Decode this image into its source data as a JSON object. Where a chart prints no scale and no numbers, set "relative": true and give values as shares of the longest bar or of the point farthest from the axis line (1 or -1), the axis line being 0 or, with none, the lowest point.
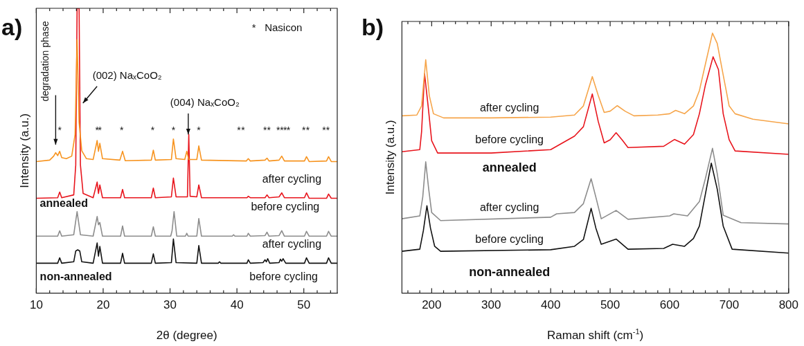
{
  "chart_data": [
    {
      "type": "line",
      "title": "a)",
      "xlabel": "2θ (degree)",
      "ylabel": "Intensity (a.u.)",
      "relative": true,
      "marker": "none",
      "xlim": [
        10,
        55
      ],
      "xticks": [
        10,
        {
          "value": 12,
          "label": null
        },
        {
          "value": 14,
          "label": null
        },
        {
          "value": 16,
          "label": null
        },
        {
          "value": 18,
          "label": null
        },
        20,
        {
          "value": 22,
          "label": null
        },
        {
          "value": 24,
          "label": null
        },
        {
          "value": 26,
          "label": null
        },
        {
          "value": 28,
          "label": null
        },
        30,
        {
          "value": 32,
          "label": null
        },
        {
          "value": 34,
          "label": null
        },
        {
          "value": 36,
          "label": null
        },
        {
          "value": 38,
          "label": null
        },
        40,
        {
          "value": 42,
          "label": null
        },
        {
          "value": 44,
          "label": null
        },
        {
          "value": 46,
          "label": null
        },
        {
          "value": 48,
          "label": null
        },
        50,
        {
          "value": 52,
          "label": null
        },
        {
          "value": 54,
          "label": null
        }
      ],
      "series": [
        {
          "color": "#f7931e",
          "x": [
            10,
            12.0,
            12.6,
            12.9,
            13.2,
            13.5,
            13.8,
            14.5,
            15.3,
            15.8,
            16.1,
            16.4,
            16.8,
            17.5,
            18.5,
            19.1,
            19.3,
            19.5,
            19.9,
            22.5,
            22.9,
            23.3,
            27.2,
            27.5,
            27.8,
            30.2,
            30.5,
            30.9,
            32.2,
            32.5,
            32.8,
            34.0,
            34.3,
            34.7,
            41.4,
            41.7,
            42.0,
            44.2,
            44.5,
            44.8,
            46.3,
            46.7,
            47.1,
            50.1,
            50.4,
            50.8,
            53.4,
            53.7,
            54.1,
            55
          ],
          "values": [
            0.462,
            0.467,
            0.481,
            0.493,
            0.483,
            0.498,
            0.476,
            0.472,
            0.481,
            0.557,
            0.89,
            0.6,
            0.5,
            0.472,
            0.469,
            0.536,
            0.498,
            0.526,
            0.472,
            0.467,
            0.498,
            0.465,
            0.467,
            0.502,
            0.467,
            0.469,
            0.541,
            0.472,
            0.469,
            0.498,
            0.469,
            0.469,
            0.517,
            0.467,
            0.464,
            0.472,
            0.464,
            0.467,
            0.474,
            0.464,
            0.467,
            0.481,
            0.464,
            0.464,
            0.479,
            0.462,
            0.464,
            0.479,
            0.462,
            0.462
          ]
        },
        {
          "color": "#e8141c",
          "x": [
            10,
            13.2,
            13.5,
            13.8,
            15.6,
            15.9,
            16.1,
            16.4,
            16.6,
            17.0,
            18.5,
            19.1,
            19.3,
            19.5,
            19.9,
            22.6,
            22.9,
            23.2,
            27.2,
            27.5,
            27.8,
            30.2,
            30.5,
            30.9,
            32.6,
            32.8,
            33.0,
            34.0,
            34.3,
            34.7,
            41.5,
            41.7,
            42.0,
            44.2,
            44.5,
            44.8,
            46.3,
            46.7,
            47.1,
            50.1,
            50.4,
            50.8,
            53.4,
            53.7,
            54.1,
            55
          ],
          "values": [
            0.333,
            0.335,
            0.355,
            0.335,
            0.345,
            0.45,
            1.0,
            1.0,
            0.45,
            0.35,
            0.335,
            0.39,
            0.35,
            0.38,
            0.335,
            0.335,
            0.364,
            0.335,
            0.335,
            0.369,
            0.335,
            0.338,
            0.404,
            0.338,
            0.338,
            0.557,
            0.34,
            0.338,
            0.38,
            0.335,
            0.335,
            0.34,
            0.335,
            0.335,
            0.345,
            0.335,
            0.338,
            0.352,
            0.335,
            0.335,
            0.352,
            0.333,
            0.333,
            0.348,
            0.333,
            0.333
          ]
        },
        {
          "color": "#8c8c8c",
          "x": [
            10,
            13.2,
            13.5,
            13.8,
            15.6,
            16.1,
            16.6,
            18.5,
            19.1,
            19.3,
            19.5,
            19.9,
            22.6,
            22.9,
            23.2,
            27.2,
            27.5,
            27.8,
            30.1,
            30.3,
            30.6,
            31.0,
            32.3,
            32.5,
            32.7,
            34.0,
            34.3,
            34.7,
            39.3,
            39.5,
            39.7,
            41.5,
            41.7,
            42.0,
            44.2,
            44.5,
            44.8,
            46.3,
            46.7,
            47.1,
            50.1,
            50.4,
            50.8,
            53.4,
            53.7,
            54.1,
            55
          ],
          "values": [
            0.2,
            0.2,
            0.219,
            0.2,
            0.205,
            0.286,
            0.205,
            0.2,
            0.269,
            0.24,
            0.248,
            0.2,
            0.2,
            0.236,
            0.2,
            0.2,
            0.233,
            0.2,
            0.2,
            0.219,
            0.286,
            0.2,
            0.2,
            0.21,
            0.2,
            0.2,
            0.262,
            0.2,
            0.2,
            0.205,
            0.2,
            0.2,
            0.21,
            0.2,
            0.202,
            0.214,
            0.2,
            0.202,
            0.219,
            0.2,
            0.2,
            0.217,
            0.2,
            0.2,
            0.217,
            0.2,
            0.2
          ]
        },
        {
          "color": "#111111",
          "x": [
            10,
            13.2,
            13.5,
            13.8,
            15.6,
            15.9,
            16.2,
            16.5,
            16.8,
            18.5,
            19.1,
            19.3,
            19.5,
            19.9,
            22.6,
            22.9,
            23.2,
            27.2,
            27.5,
            27.8,
            30.2,
            30.5,
            30.9,
            34.0,
            34.3,
            34.7,
            37.2,
            37.4,
            37.6,
            41.5,
            41.7,
            42.0,
            43.9,
            44.2,
            44.4,
            44.6,
            44.9,
            46.3,
            46.5,
            46.7,
            46.9,
            47.3,
            50.1,
            50.4,
            50.8,
            53.4,
            53.7,
            54.1,
            55
          ],
          "values": [
            0.105,
            0.105,
            0.124,
            0.105,
            0.11,
            0.148,
            0.152,
            0.148,
            0.11,
            0.105,
            0.176,
            0.13,
            0.164,
            0.105,
            0.105,
            0.14,
            0.105,
            0.105,
            0.138,
            0.105,
            0.107,
            0.19,
            0.107,
            0.105,
            0.167,
            0.105,
            0.105,
            0.11,
            0.105,
            0.105,
            0.117,
            0.105,
            0.107,
            0.117,
            0.11,
            0.121,
            0.105,
            0.107,
            0.119,
            0.112,
            0.121,
            0.105,
            0.105,
            0.124,
            0.105,
            0.105,
            0.124,
            0.105,
            0.105
          ]
        }
      ],
      "annotations": [
        "degradation phase",
        "(002) NaₓCoO₂",
        "(004) NaₓCoO₂",
        "*",
        "*",
        "*",
        "*",
        "*",
        "*",
        "*",
        "*",
        "*",
        "*",
        "*",
        "*",
        "*",
        "*",
        "*",
        "*",
        "*",
        "*",
        "*",
        "after cycling",
        "before cycling",
        "after cycling",
        "before cycling",
        "*   Nasicon",
        "annealed",
        "non-annealed"
      ]
    },
    {
      "type": "line",
      "title": "b)",
      "xlabel": "Raman shift (cm$^{-1}$)",
      "ylabel": "Intensity (a.u.)",
      "relative": true,
      "marker": "none",
      "xlim": [
        150,
        800
      ],
      "xticks": [
        {
          "value": 160,
          "label": null
        },
        {
          "value": 180,
          "label": null
        },
        200,
        {
          "value": 220,
          "label": null
        },
        {
          "value": 240,
          "label": null
        },
        {
          "value": 260,
          "label": null
        },
        {
          "value": 280,
          "label": null
        },
        300,
        {
          "value": 320,
          "label": null
        },
        {
          "value": 340,
          "label": null
        },
        {
          "value": 360,
          "label": null
        },
        {
          "value": 380,
          "label": null
        },
        400,
        {
          "value": 420,
          "label": null
        },
        {
          "value": 440,
          "label": null
        },
        {
          "value": 460,
          "label": null
        },
        {
          "value": 480,
          "label": null
        },
        500,
        {
          "value": 520,
          "label": null
        },
        {
          "value": 540,
          "label": null
        },
        {
          "value": 560,
          "label": null
        },
        {
          "value": 580,
          "label": null
        },
        600,
        {
          "value": 620,
          "label": null
        },
        {
          "value": 640,
          "label": null
        },
        {
          "value": 660,
          "label": null
        },
        {
          "value": 680,
          "label": null
        },
        700,
        {
          "value": 720,
          "label": null
        },
        {
          "value": 740,
          "label": null
        },
        {
          "value": 760,
          "label": null
        },
        {
          "value": 780,
          "label": null
        },
        800
      ],
      "series": [
        {
          "color": "#f6a54a",
          "x": [
            150,
            175,
            183,
            190,
            196,
            203,
            220,
            300,
            400,
            440,
            455,
            470,
            480,
            490,
            500,
            512,
            525,
            540,
            580,
            600,
            610,
            625,
            640,
            650,
            660,
            672,
            680,
            690,
            700,
            710,
            740,
            800
          ],
          "values": [
            0.682,
            0.685,
            0.72,
            0.898,
            0.76,
            0.69,
            0.674,
            0.674,
            0.677,
            0.685,
            0.72,
            0.833,
            0.76,
            0.695,
            0.7,
            0.721,
            0.7,
            0.682,
            0.685,
            0.69,
            0.703,
            0.69,
            0.72,
            0.779,
            0.88,
            1.0,
            0.96,
            0.839,
            0.72,
            0.69,
            0.669,
            0.651
          ]
        },
        {
          "color": "#e8141c",
          "x": [
            150,
            180,
            183,
            188,
            194,
            200,
            210,
            300,
            400,
            440,
            455,
            470,
            480,
            490,
            500,
            510,
            520,
            530,
            590,
            608,
            625,
            640,
            650,
            660,
            673,
            682,
            690,
            700,
            710,
            800
          ],
          "values": [
            0.544,
            0.552,
            0.62,
            0.844,
            0.72,
            0.586,
            0.539,
            0.539,
            0.552,
            0.604,
            0.64,
            0.766,
            0.66,
            0.578,
            0.59,
            0.617,
            0.59,
            0.56,
            0.565,
            0.591,
            0.573,
            0.61,
            0.69,
            0.8,
            0.909,
            0.86,
            0.69,
            0.59,
            0.547,
            0.534
          ]
        },
        {
          "color": "#8c8c8c",
          "x": [
            150,
            180,
            185,
            190,
            195,
            200,
            215,
            400,
            410,
            440,
            455,
            468,
            477,
            485,
            510,
            530,
            600,
            607,
            630,
            650,
            660,
            672,
            680,
            690,
            720,
            800
          ],
          "values": [
            0.286,
            0.297,
            0.37,
            0.505,
            0.4,
            0.31,
            0.279,
            0.292,
            0.305,
            0.31,
            0.344,
            0.44,
            0.36,
            0.286,
            0.318,
            0.284,
            0.297,
            0.305,
            0.297,
            0.352,
            0.44,
            0.557,
            0.46,
            0.3,
            0.271,
            0.266
          ]
        },
        {
          "color": "#111111",
          "x": [
            150,
            180,
            186,
            192,
            198,
            205,
            215,
            400,
            440,
            455,
            468,
            476,
            485,
            510,
            530,
            590,
            605,
            625,
            640,
            650,
            660,
            670,
            680,
            690,
            705,
            800
          ],
          "values": [
            0.161,
            0.169,
            0.24,
            0.336,
            0.25,
            0.18,
            0.161,
            0.167,
            0.18,
            0.206,
            0.326,
            0.25,
            0.188,
            0.208,
            0.169,
            0.172,
            0.188,
            0.18,
            0.21,
            0.258,
            0.38,
            0.5,
            0.4,
            0.258,
            0.169,
            0.154
          ]
        }
      ],
      "annotations": [
        "after cycling",
        "before cycling",
        "annealed",
        "after cycling",
        "before cycling",
        "non-annealed"
      ]
    }
  ]
}
